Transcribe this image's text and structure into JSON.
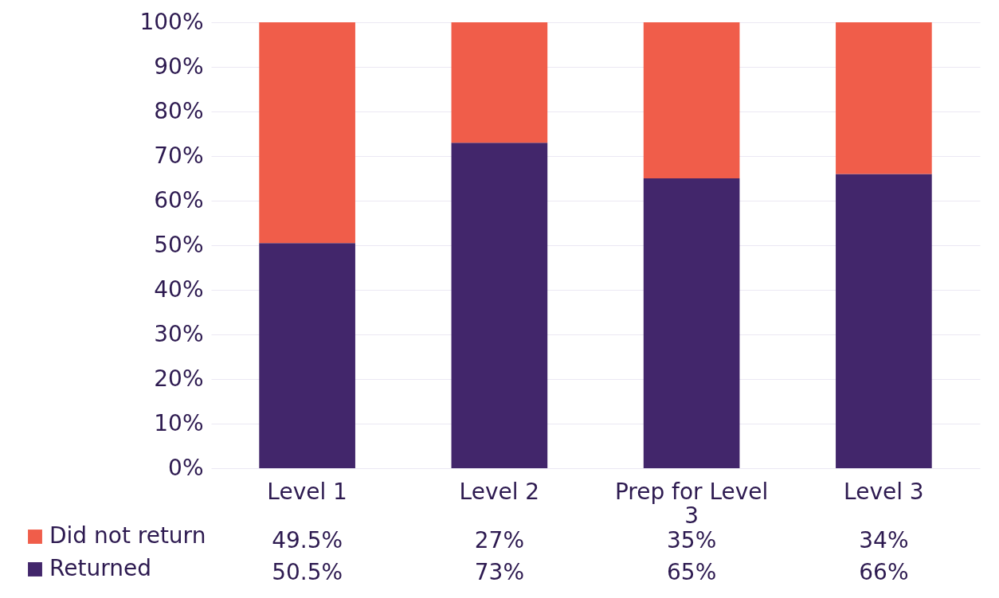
{
  "chart_data": {
    "type": "bar",
    "stacked": true,
    "categories": [
      "Level 1",
      "Level 2",
      "Prep for Level 3",
      "Level 3"
    ],
    "series": [
      {
        "name": "Returned",
        "color": "#42266b",
        "values": [
          50.5,
          73,
          65,
          66
        ],
        "value_labels": [
          "50.5%",
          "73%",
          "65%",
          "66%"
        ]
      },
      {
        "name": "Did not return",
        "color": "#f05d4a",
        "values": [
          49.5,
          27,
          35,
          34
        ],
        "value_labels": [
          "49.5%",
          "27%",
          "35%",
          "34%"
        ]
      }
    ],
    "ylim": [
      0,
      100
    ],
    "yticks": [
      {
        "value": 0,
        "label": "0%"
      },
      {
        "value": 10,
        "label": "10%"
      },
      {
        "value": 20,
        "label": "20%"
      },
      {
        "value": 30,
        "label": "30%"
      },
      {
        "value": 40,
        "label": "40%"
      },
      {
        "value": 50,
        "label": "50%"
      },
      {
        "value": 60,
        "label": "60%"
      },
      {
        "value": 70,
        "label": "70%"
      },
      {
        "value": 80,
        "label": "80%"
      },
      {
        "value": 90,
        "label": "90%"
      },
      {
        "value": 100,
        "label": "100%"
      }
    ],
    "grid": "y",
    "legend": "bottom left"
  }
}
